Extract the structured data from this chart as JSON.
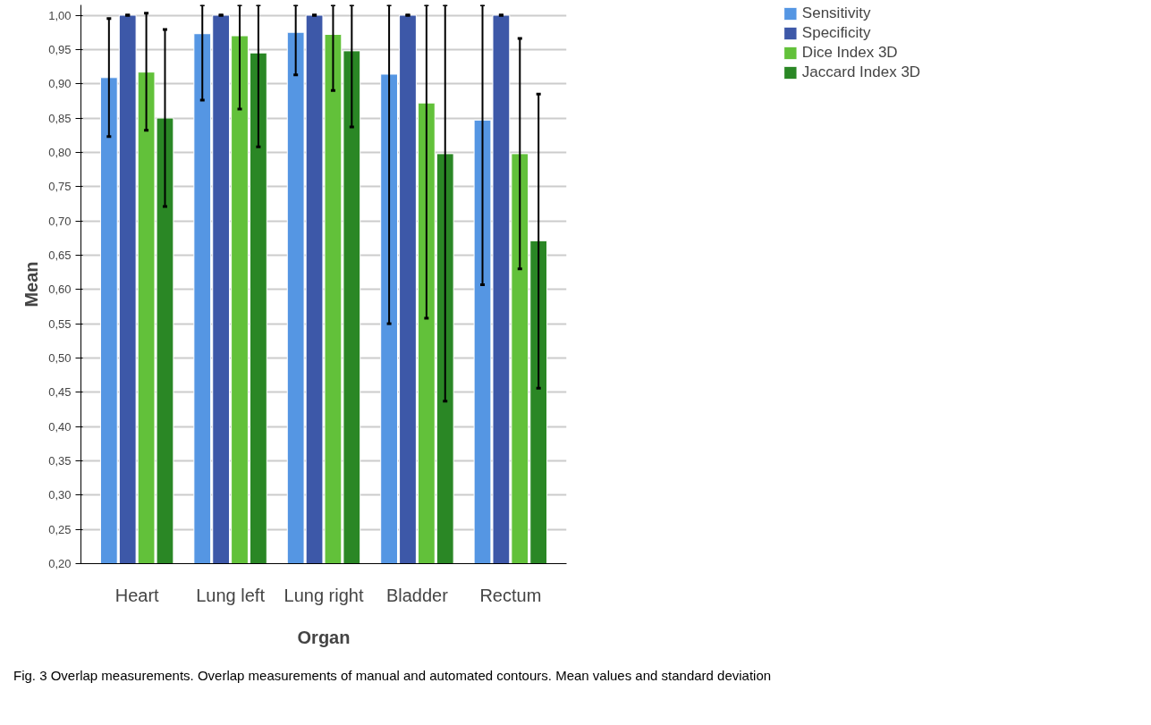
{
  "chart_data": {
    "type": "bar",
    "xlabel": "Organ",
    "ylabel": "Mean",
    "categories": [
      "Heart",
      "Lung left",
      "Lung right",
      "Bladder",
      "Rectum"
    ],
    "series": [
      {
        "name": "Sensitivity",
        "color": "#5596e3",
        "values": [
          0.909,
          0.973,
          0.975,
          0.914,
          0.847
        ],
        "errors": [
          [
            0.823,
            0.995
          ],
          [
            0.876,
            1.015
          ],
          [
            0.913,
            1.015
          ],
          [
            0.55,
            1.015
          ],
          [
            0.607,
            1.015
          ]
        ]
      },
      {
        "name": "Specificity",
        "color": "#3d58a8",
        "values": [
          1.0,
          1.0,
          1.0,
          1.0,
          1.0
        ],
        "errors": [
          0,
          0,
          0,
          0,
          0
        ]
      },
      {
        "name": "Dice Index 3D",
        "color": "#62c13a",
        "values": [
          0.917,
          0.97,
          0.972,
          0.872,
          0.798
        ],
        "errors": [
          [
            0.832,
            1.003
          ],
          [
            0.863,
            1.015
          ],
          [
            0.89,
            1.015
          ],
          [
            0.558,
            1.015
          ],
          [
            0.63,
            0.966
          ]
        ]
      },
      {
        "name": "Jaccard Index 3D",
        "color": "#2a8725",
        "values": [
          0.85,
          0.945,
          0.948,
          0.798,
          0.671
        ],
        "errors": [
          [
            0.721,
            0.979
          ],
          [
            0.808,
            1.015
          ],
          [
            0.837,
            1.015
          ],
          [
            0.437,
            1.015
          ],
          [
            0.456,
            0.885
          ]
        ]
      }
    ],
    "ylim": [
      0.2,
      1.015
    ],
    "yticks": [
      {
        "value": 0.2,
        "label": "0,20"
      },
      {
        "value": 0.25,
        "label": "0,25"
      },
      {
        "value": 0.3,
        "label": "0,30"
      },
      {
        "value": 0.35,
        "label": "0,35"
      },
      {
        "value": 0.4,
        "label": "0,40"
      },
      {
        "value": 0.45,
        "label": "0,45"
      },
      {
        "value": 0.5,
        "label": "0,50"
      },
      {
        "value": 0.55,
        "label": "0,55"
      },
      {
        "value": 0.6,
        "label": "0,60"
      },
      {
        "value": 0.65,
        "label": "0,65"
      },
      {
        "value": 0.7,
        "label": "0,70"
      },
      {
        "value": 0.75,
        "label": "0,75"
      },
      {
        "value": 0.8,
        "label": "0,80"
      },
      {
        "value": 0.85,
        "label": "0,85"
      },
      {
        "value": 0.9,
        "label": "0,90"
      },
      {
        "value": 0.95,
        "label": "0,95"
      },
      {
        "value": 1.0,
        "label": "1,00"
      }
    ],
    "grid": "y",
    "legend": "top right",
    "annotations": [
      "Fig. 3  Overlap measurements. Overlap measurements of manual and automated contours. Mean values and standard deviation"
    ]
  }
}
